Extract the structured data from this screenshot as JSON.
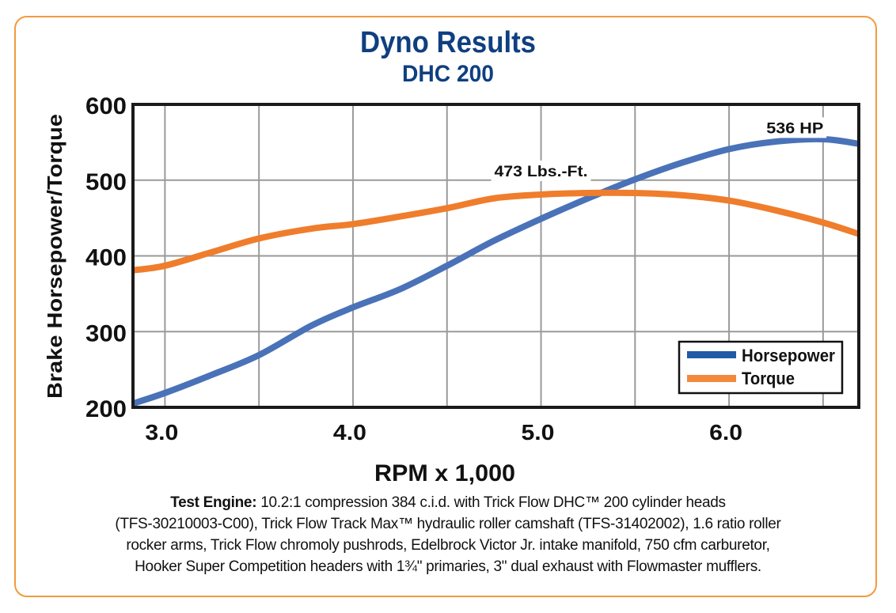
{
  "chart_data": {
    "type": "line",
    "title": "Dyno Results",
    "subtitle": "DHC 200",
    "xlabel": "RPM x 1,000",
    "ylabel": "Brake Horsepower/Torque",
    "xlim": [
      2.83,
      6.69
    ],
    "ylim": [
      200,
      600
    ],
    "x_ticks": [
      3.0,
      3.5,
      4.0,
      4.5,
      5.0,
      5.5,
      6.0,
      6.5
    ],
    "x_tick_labels": [
      "3.0",
      "4.0",
      "5.0",
      "6.0"
    ],
    "x_tick_label_values": [
      3.0,
      4.0,
      5.0,
      6.0
    ],
    "y_ticks": [
      200,
      300,
      400,
      500,
      600
    ],
    "y_tick_labels": [
      "200",
      "300",
      "400",
      "500",
      "600"
    ],
    "grid": true,
    "legend": "bottom-right",
    "series": [
      {
        "name": "Horsepower",
        "color": "#4a72b8",
        "x": [
          2.83,
          3.0,
          3.25,
          3.5,
          3.78,
          4.0,
          4.25,
          4.5,
          4.75,
          5.0,
          5.25,
          5.5,
          5.75,
          6.0,
          6.25,
          6.5,
          6.69
        ],
        "y": [
          205,
          219,
          243,
          269,
          308,
          332,
          356,
          387,
          420,
          449,
          476,
          501,
          523,
          541,
          551,
          554,
          548
        ]
      },
      {
        "name": "Torque",
        "color": "#ef7d2c",
        "x": [
          2.83,
          3.0,
          3.25,
          3.5,
          3.78,
          4.0,
          4.25,
          4.5,
          4.75,
          5.0,
          5.25,
          5.5,
          5.75,
          6.0,
          6.25,
          6.5,
          6.69
        ],
        "y": [
          381,
          387,
          405,
          423,
          436,
          442,
          452,
          463,
          476,
          481,
          483,
          483,
          480,
          473,
          460,
          444,
          429
        ]
      }
    ],
    "annotations": [
      {
        "text": "536 HP",
        "x": 6.35,
        "y": 562
      },
      {
        "text": "473 Lbs.-Ft.",
        "x": 5.0,
        "y": 505
      }
    ]
  },
  "caption": {
    "label": "Test Engine:",
    "lines": [
      " 10.2:1 compression 384 c.i.d. with Trick Flow DHC™ 200 cylinder heads",
      "(TFS-30210003-C00), Trick Flow Track Max™ hydraulic roller camshaft (TFS-31402002), 1.6 ratio roller",
      "rocker arms, Trick Flow chromoly pushrods, Edelbrock Victor Jr. intake manifold, 750 cfm carburetor,",
      "Hooker Super Competition headers with 1¾\" primaries, 3\" dual exhaust with Flowmaster mufflers."
    ]
  },
  "colors": {
    "title": "#0f3f80",
    "frame": "#f39a3c",
    "grid": "#9a9a9a"
  }
}
